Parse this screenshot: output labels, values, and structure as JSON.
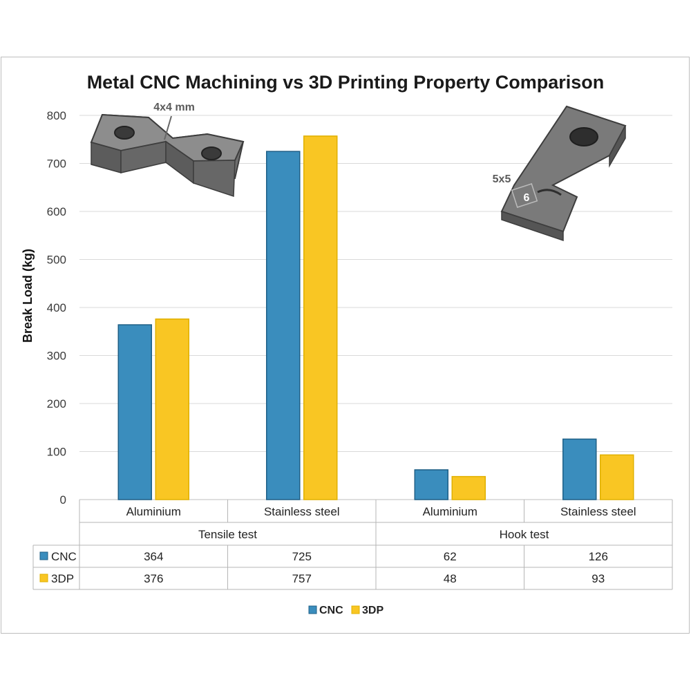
{
  "chart_data": {
    "type": "bar",
    "title": "Metal CNC Machining vs 3D Printing Property Comparison",
    "ylabel": "Break Load (kg)",
    "xlabel": "",
    "ylim": [
      0,
      800
    ],
    "yticks": [
      0,
      100,
      200,
      300,
      400,
      500,
      600,
      700,
      800
    ],
    "grid": true,
    "legend_position": "bottom",
    "categories": [
      "Aluminium",
      "Stainless steel",
      "Aluminium",
      "Stainless steel"
    ],
    "groups": [
      {
        "label": "Tensile test",
        "categories": [
          "Aluminium",
          "Stainless steel"
        ]
      },
      {
        "label": "Hook test",
        "categories": [
          "Aluminium",
          "Stainless steel"
        ]
      }
    ],
    "series": [
      {
        "name": "CNC",
        "color": "#3a8dbd",
        "values": [
          364,
          725,
          62,
          126
        ]
      },
      {
        "name": "3DP",
        "color": "#f9c623",
        "values": [
          376,
          757,
          48,
          93
        ]
      }
    ],
    "data_table": true,
    "annotations": {
      "tensile_specimen_label": "4x4 mm",
      "hook_specimen_label": "5x5",
      "hook_specimen_number": "6"
    }
  }
}
